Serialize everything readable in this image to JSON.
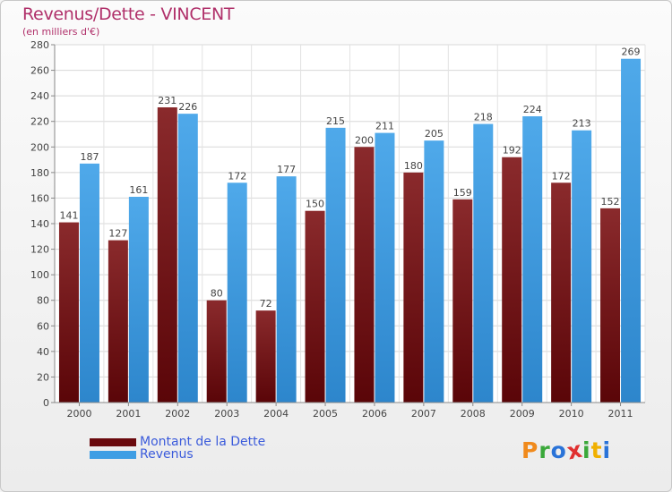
{
  "header": {
    "title": "Revenus/Dette - VINCENT",
    "subtitle": "(en milliers d'€)"
  },
  "logo": {
    "letters": [
      "P",
      "r",
      "o",
      "x",
      "i",
      "t",
      "i"
    ],
    "colors": [
      "#f08a1c",
      "#3aa83a",
      "#2a73d8",
      "#e03030",
      "#3aa83a",
      "#f0b000",
      "#2a73d8"
    ]
  },
  "chart_data": {
    "type": "bar",
    "title": "Revenus/Dette - VINCENT",
    "subtitle": "(en milliers d'€)",
    "categories": [
      "2000",
      "2001",
      "2002",
      "2003",
      "2004",
      "2005",
      "2006",
      "2007",
      "2008",
      "2009",
      "2010",
      "2011"
    ],
    "series": [
      {
        "name": "Montant de la Dette",
        "color": "#7a1416",
        "values": [
          141,
          127,
          231,
          80,
          72,
          150,
          200,
          180,
          159,
          192,
          172,
          152
        ]
      },
      {
        "name": "Revenus",
        "color": "#3f9ee4",
        "values": [
          187,
          161,
          226,
          172,
          177,
          215,
          211,
          205,
          218,
          224,
          213,
          269
        ]
      }
    ],
    "ylim": [
      0,
      280
    ],
    "yticks": [
      0,
      20,
      40,
      60,
      80,
      100,
      120,
      140,
      160,
      180,
      200,
      220,
      240,
      260,
      280
    ],
    "grid": true,
    "legend_position": "bottom-left",
    "xlabel": "",
    "ylabel": ""
  }
}
